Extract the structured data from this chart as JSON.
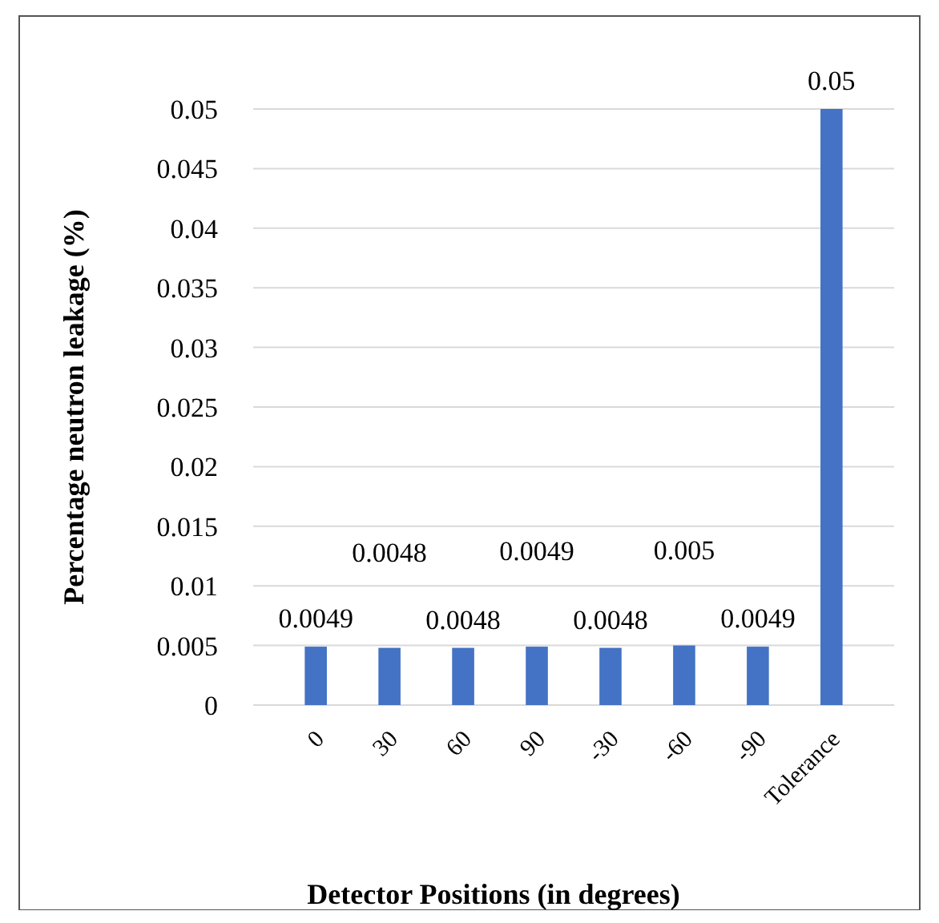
{
  "chart_data": {
    "type": "bar",
    "xlabel": "Detector Positions (in degrees)",
    "ylabel": "Percentage neutron leakage (%)",
    "categories": [
      "0",
      "30",
      "60",
      "90",
      "-30",
      "-60",
      "-90",
      "Tolerance"
    ],
    "values": [
      0.0049,
      0.0048,
      0.0048,
      0.0049,
      0.0048,
      0.005,
      0.0049,
      0.05
    ],
    "color": "#4472c4",
    "ylim": [
      0,
      0.05
    ],
    "yticks": [
      0,
      0.005,
      0.01,
      0.015,
      0.02,
      0.025,
      0.03,
      0.035,
      0.04,
      0.045,
      0.05
    ],
    "grid": "y",
    "data_labels": true
  }
}
